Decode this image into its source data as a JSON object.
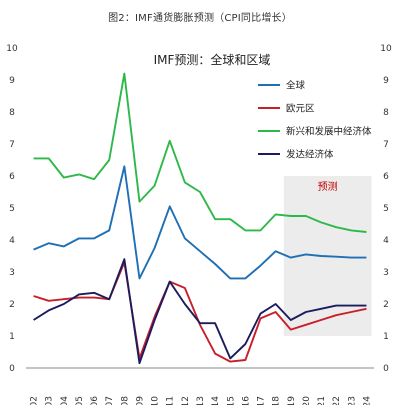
{
  "figure_title": "图2：IMF通货膨胀预测（CPI同比增长）",
  "chart_data": {
    "type": "line",
    "title": "IMF预测：全球和区域",
    "xlabel": "",
    "ylabel": "",
    "ylim": [
      0,
      10
    ],
    "y_ticks": [
      "0",
      "1",
      "2",
      "3",
      "4",
      "5",
      "6",
      "7",
      "8",
      "9",
      "10"
    ],
    "x": [
      "2002",
      "2003",
      "2004",
      "2005",
      "2006",
      "2007",
      "2008",
      "2009",
      "2010",
      "2011",
      "2012",
      "2013",
      "2014",
      "2015",
      "2016",
      "2017",
      "2018",
      "2019",
      "2020",
      "2021",
      "2022",
      "2023",
      "2024"
    ],
    "grid": false,
    "legend_position": "top-right",
    "forecast_region": {
      "label": "预测",
      "x_start": "2019",
      "x_end": "2024",
      "y_range": [
        1,
        6
      ],
      "color": "#ececec",
      "label_color": "#c00000"
    },
    "series": [
      {
        "name": "全球",
        "color": "#1f6fb5",
        "values": [
          3.7,
          3.9,
          3.8,
          4.05,
          4.05,
          4.3,
          6.3,
          2.8,
          3.75,
          5.05,
          4.05,
          3.65,
          3.25,
          2.8,
          2.8,
          3.2,
          3.65,
          3.45,
          3.55,
          3.5,
          3.48,
          3.45,
          3.45
        ]
      },
      {
        "name": "欧元区",
        "color": "#c8202a",
        "values": [
          2.25,
          2.1,
          2.15,
          2.2,
          2.2,
          2.15,
          3.3,
          0.3,
          1.6,
          2.7,
          2.5,
          1.35,
          0.45,
          0.2,
          0.25,
          1.55,
          1.75,
          1.2,
          1.35,
          1.5,
          1.65,
          1.75,
          1.85
        ]
      },
      {
        "name": "新兴和发展中经济体",
        "color": "#2fb84a",
        "values": [
          6.55,
          6.55,
          5.95,
          6.05,
          5.9,
          6.5,
          9.2,
          5.2,
          5.7,
          7.1,
          5.8,
          5.5,
          4.65,
          4.65,
          4.3,
          4.3,
          4.8,
          4.75,
          4.75,
          4.55,
          4.4,
          4.3,
          4.25
        ]
      },
      {
        "name": "发达经济体",
        "color": "#1b1b5e",
        "values": [
          1.5,
          1.8,
          2.0,
          2.3,
          2.35,
          2.15,
          3.4,
          0.15,
          1.5,
          2.7,
          2.0,
          1.4,
          1.4,
          0.3,
          0.75,
          1.7,
          2.0,
          1.5,
          1.75,
          1.85,
          1.95,
          1.95,
          1.95
        ]
      }
    ]
  }
}
